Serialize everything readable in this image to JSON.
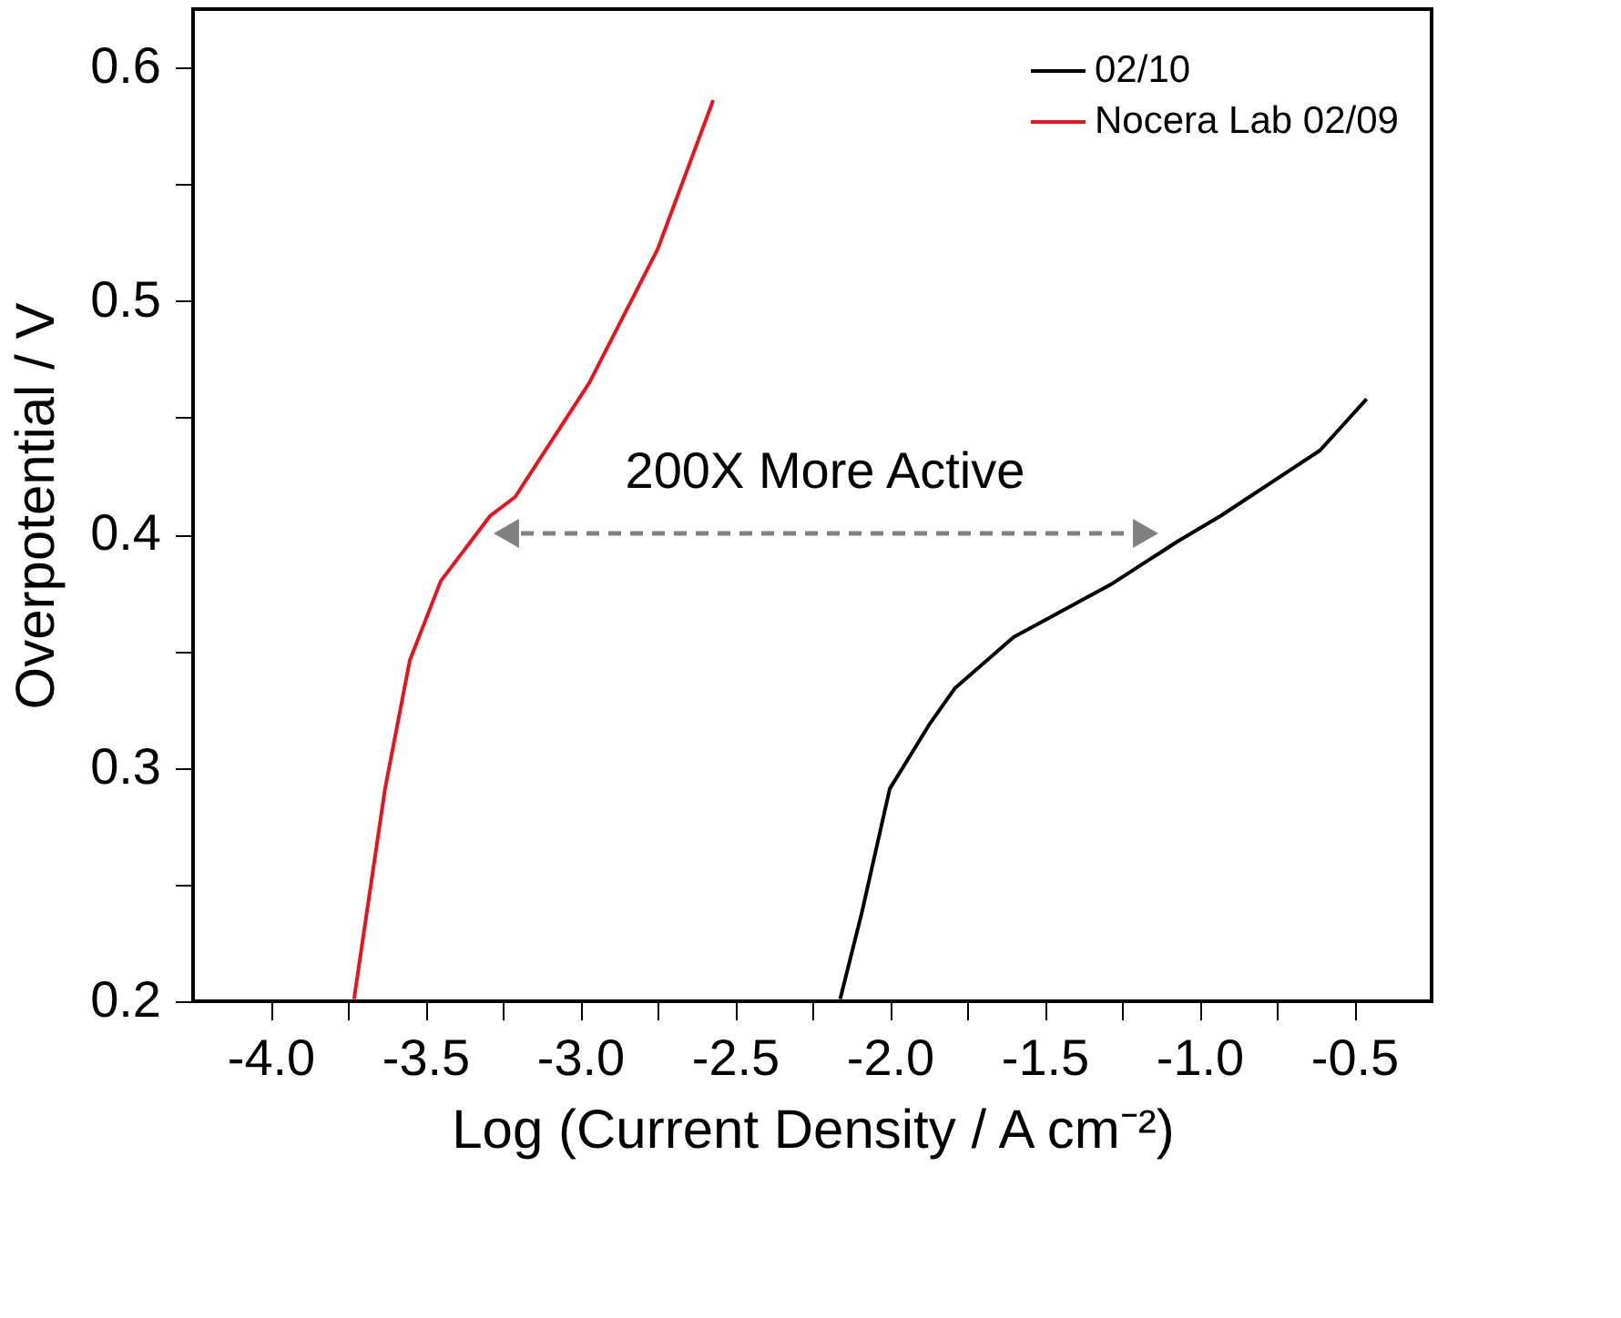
{
  "chart_data": {
    "type": "line",
    "xlabel": "Log (Current Density / A cm⁻²)",
    "ylabel": "Overpotential / V",
    "xlim": [
      -4.25,
      -0.25
    ],
    "ylim": [
      0.2,
      0.625
    ],
    "xticks": [
      {
        "value": -4,
        "label": "-4.0"
      },
      {
        "value": -3.75,
        "label": null
      },
      {
        "value": -3.5,
        "label": "-3.5"
      },
      {
        "value": -3.25,
        "label": null
      },
      {
        "value": -3,
        "label": "-3.0"
      },
      {
        "value": -2.75,
        "label": null
      },
      {
        "value": -2.5,
        "label": "-2.5"
      },
      {
        "value": -2.25,
        "label": null
      },
      {
        "value": -2,
        "label": "-2.0"
      },
      {
        "value": -1.75,
        "label": null
      },
      {
        "value": -1.5,
        "label": "-1.5"
      },
      {
        "value": -1.25,
        "label": null
      },
      {
        "value": -1,
        "label": "-1.0"
      },
      {
        "value": -0.75,
        "label": null
      },
      {
        "value": -0.5,
        "label": "-0.5"
      }
    ],
    "yticks": [
      0.2,
      {
        "value": 0.25,
        "label": null
      },
      0.3,
      {
        "value": 0.35,
        "label": null
      },
      0.4,
      {
        "value": 0.45,
        "label": null
      },
      0.5,
      {
        "value": 0.55,
        "label": null
      },
      0.6
    ],
    "grid": false,
    "legend": "top right",
    "marker": "none",
    "line_style": "solid",
    "series": [
      {
        "name": "02/10",
        "color": "#000000",
        "x": [
          -2.16,
          -2.09,
          -2.0,
          -1.87,
          -1.79,
          -1.6,
          -1.28,
          -1.07,
          -0.93,
          -0.61,
          -0.46
        ],
        "values": [
          0.201,
          0.238,
          0.291,
          0.319,
          0.334,
          0.356,
          0.379,
          0.397,
          0.408,
          0.436,
          0.458
        ]
      },
      {
        "name": "Nocera Lab 02/09",
        "color": "#e8141b",
        "x": [
          -3.73,
          -3.63,
          -3.55,
          -3.45,
          -3.29,
          -3.21,
          -2.97,
          -2.75,
          -2.57
        ],
        "values": [
          0.201,
          0.291,
          0.346,
          0.38,
          0.408,
          0.416,
          0.465,
          0.522,
          0.586
        ]
      }
    ],
    "annotations": [
      "200X More Active"
    ]
  }
}
